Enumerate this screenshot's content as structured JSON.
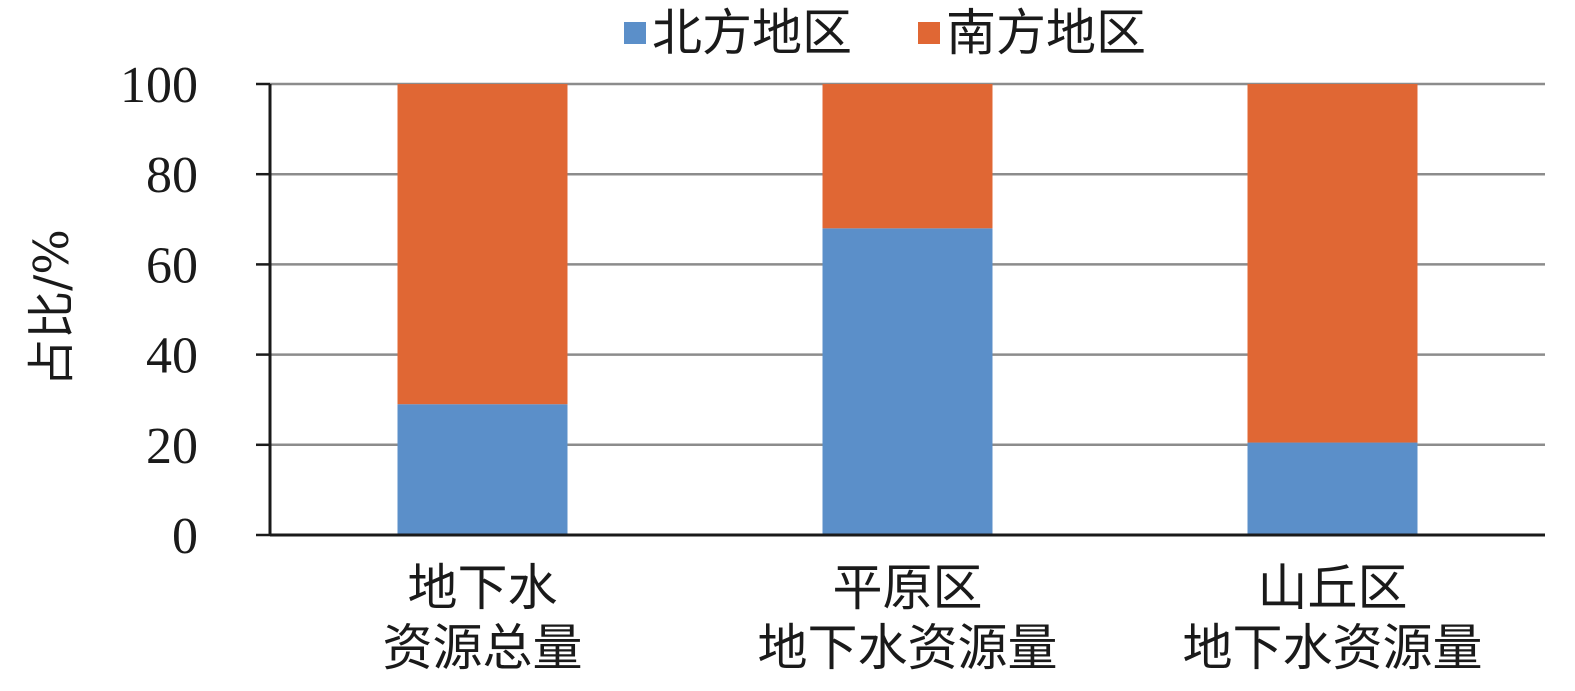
{
  "chart_data": {
    "type": "bar",
    "stacked": true,
    "ylabel": "占比/%",
    "ylim": [
      0,
      100
    ],
    "yticks": [
      "0",
      "20",
      "40",
      "60",
      "80",
      "100"
    ],
    "grid": true,
    "legend_position": "top",
    "categories": [
      [
        "地下水",
        "资源总量"
      ],
      [
        "平原区",
        "地下水资源量"
      ],
      [
        "山丘区",
        "地下水资源量"
      ]
    ],
    "series": [
      {
        "name": "北方地区",
        "color": "#5b8fc9",
        "values": [
          29,
          68,
          20.5
        ]
      },
      {
        "name": "南方地区",
        "color": "#e06734",
        "values": [
          71,
          32,
          79.5
        ]
      }
    ]
  }
}
